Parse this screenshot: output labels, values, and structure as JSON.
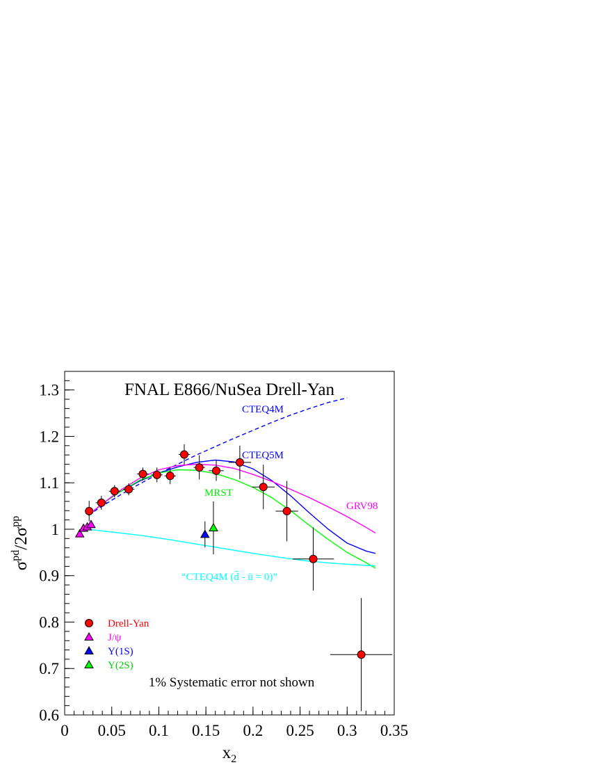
{
  "chart_data": {
    "type": "scatter",
    "title": "FNAL E866/NuSea Drell-Yan",
    "xlabel": "x",
    "xlabel_sub": "2",
    "ylabel": {
      "sigma1": "σ",
      "sup1": "pd",
      "mid": "/2σ",
      "sup2": "pp"
    },
    "xlim": [
      0,
      0.35
    ],
    "ylim": [
      0.6,
      1.34
    ],
    "xticks": [
      0,
      0.05,
      0.1,
      0.15,
      0.2,
      0.25,
      0.3,
      0.35
    ],
    "xtick_labels": [
      "0",
      "0.05",
      "0.1",
      "0.15",
      "0.2",
      "0.25",
      "0.3",
      "0.35"
    ],
    "yticks": [
      0.6,
      0.7,
      0.8,
      0.9,
      1.0,
      1.1,
      1.2,
      1.3
    ],
    "ytick_labels": [
      "0.6",
      "0.7",
      "0.8",
      "0.9",
      "1",
      "1.1",
      "1.2",
      "1.3"
    ],
    "grid": false,
    "note": "1% Systematic error not shown",
    "series": [
      {
        "name": "Drell-Yan",
        "marker": "circle",
        "color": "#ff0000",
        "points": [
          {
            "x": 0.026,
            "y": 1.039,
            "xerr": 0.004,
            "yerr": 0.022
          },
          {
            "x": 0.039,
            "y": 1.057,
            "xerr": 0.006,
            "yerr": 0.015
          },
          {
            "x": 0.053,
            "y": 1.082,
            "xerr": 0.006,
            "yerr": 0.013
          },
          {
            "x": 0.068,
            "y": 1.086,
            "xerr": 0.006,
            "yerr": 0.013
          },
          {
            "x": 0.083,
            "y": 1.119,
            "xerr": 0.006,
            "yerr": 0.014
          },
          {
            "x": 0.098,
            "y": 1.117,
            "xerr": 0.006,
            "yerr": 0.016
          },
          {
            "x": 0.112,
            "y": 1.115,
            "xerr": 0.006,
            "yerr": 0.018
          },
          {
            "x": 0.127,
            "y": 1.161,
            "xerr": 0.006,
            "yerr": 0.022
          },
          {
            "x": 0.143,
            "y": 1.133,
            "xerr": 0.006,
            "yerr": 0.026
          },
          {
            "x": 0.161,
            "y": 1.126,
            "xerr": 0.008,
            "yerr": 0.022
          },
          {
            "x": 0.186,
            "y": 1.144,
            "xerr": 0.012,
            "yerr": 0.036
          },
          {
            "x": 0.211,
            "y": 1.091,
            "xerr": 0.012,
            "yerr": 0.048
          },
          {
            "x": 0.236,
            "y": 1.039,
            "xerr": 0.012,
            "yerr": 0.065
          },
          {
            "x": 0.264,
            "y": 0.936,
            "xerr": 0.022,
            "yerr": 0.068
          },
          {
            "x": 0.315,
            "y": 0.73,
            "xerr": 0.033,
            "yerr": 0.122
          }
        ]
      },
      {
        "name": "J/ψ",
        "marker": "triangle",
        "color": "#ff00ff",
        "points": [
          {
            "x": 0.016,
            "y": 0.99,
            "xerr": 0,
            "yerr": 0
          },
          {
            "x": 0.02,
            "y": 1.002,
            "xerr": 0,
            "yerr": 0
          },
          {
            "x": 0.024,
            "y": 1.005,
            "xerr": 0,
            "yerr": 0
          },
          {
            "x": 0.028,
            "y": 1.01,
            "xerr": 0,
            "yerr": 0
          }
        ]
      },
      {
        "name": "Υ(1S)",
        "marker": "triangle",
        "color": "#0000ff",
        "points": [
          {
            "x": 0.149,
            "y": 0.989,
            "xerr": 0,
            "yerr": 0.028
          }
        ]
      },
      {
        "name": "Υ(2S)",
        "marker": "triangle",
        "color": "#00ff00",
        "points": [
          {
            "x": 0.158,
            "y": 1.003,
            "xerr": 0,
            "yerr": 0.057
          }
        ]
      }
    ],
    "curves": [
      {
        "name": "CTEQ4M",
        "color": "#0000ff",
        "dashed": true,
        "points": [
          [
            0.025,
            1.03
          ],
          [
            0.04,
            1.05
          ],
          [
            0.06,
            1.075
          ],
          [
            0.08,
            1.098
          ],
          [
            0.1,
            1.12
          ],
          [
            0.12,
            1.14
          ],
          [
            0.14,
            1.16
          ],
          [
            0.16,
            1.178
          ],
          [
            0.18,
            1.196
          ],
          [
            0.2,
            1.213
          ],
          [
            0.22,
            1.23
          ],
          [
            0.24,
            1.246
          ],
          [
            0.26,
            1.26
          ],
          [
            0.28,
            1.273
          ],
          [
            0.3,
            1.283
          ]
        ]
      },
      {
        "name": "CTEQ5M",
        "color": "#0000ff",
        "dashed": false,
        "points": [
          [
            0.025,
            1.03
          ],
          [
            0.04,
            1.055
          ],
          [
            0.06,
            1.082
          ],
          [
            0.08,
            1.104
          ],
          [
            0.1,
            1.121
          ],
          [
            0.12,
            1.134
          ],
          [
            0.14,
            1.144
          ],
          [
            0.16,
            1.149
          ],
          [
            0.18,
            1.145
          ],
          [
            0.2,
            1.13
          ],
          [
            0.22,
            1.105
          ],
          [
            0.24,
            1.072
          ],
          [
            0.26,
            1.035
          ],
          [
            0.28,
            1.0
          ],
          [
            0.3,
            0.97
          ],
          [
            0.32,
            0.953
          ],
          [
            0.33,
            0.948
          ]
        ]
      },
      {
        "name": "MRST",
        "color": "#00ff00",
        "dashed": false,
        "points": [
          [
            0.025,
            1.03
          ],
          [
            0.04,
            1.055
          ],
          [
            0.06,
            1.082
          ],
          [
            0.08,
            1.106
          ],
          [
            0.1,
            1.121
          ],
          [
            0.12,
            1.128
          ],
          [
            0.14,
            1.127
          ],
          [
            0.16,
            1.12
          ],
          [
            0.18,
            1.107
          ],
          [
            0.2,
            1.09
          ],
          [
            0.22,
            1.068
          ],
          [
            0.24,
            1.04
          ],
          [
            0.26,
            1.008
          ],
          [
            0.28,
            0.978
          ],
          [
            0.3,
            0.95
          ],
          [
            0.32,
            0.928
          ],
          [
            0.33,
            0.916
          ]
        ]
      },
      {
        "name": "GRV98",
        "color": "#ff00ff",
        "dashed": false,
        "points": [
          [
            0.025,
            1.03
          ],
          [
            0.04,
            1.055
          ],
          [
            0.06,
            1.085
          ],
          [
            0.08,
            1.11
          ],
          [
            0.1,
            1.128
          ],
          [
            0.12,
            1.137
          ],
          [
            0.14,
            1.14
          ],
          [
            0.16,
            1.138
          ],
          [
            0.18,
            1.131
          ],
          [
            0.2,
            1.118
          ],
          [
            0.22,
            1.103
          ],
          [
            0.24,
            1.086
          ],
          [
            0.26,
            1.068
          ],
          [
            0.28,
            1.048
          ],
          [
            0.3,
            1.027
          ],
          [
            0.32,
            1.004
          ],
          [
            0.33,
            0.992
          ]
        ]
      },
      {
        "name": "“CTEQ4M (d̄ - ū = 0)”",
        "color": "#00ffff",
        "dashed": false,
        "points": [
          [
            0.025,
            1.0
          ],
          [
            0.05,
            0.994
          ],
          [
            0.08,
            0.987
          ],
          [
            0.11,
            0.978
          ],
          [
            0.14,
            0.968
          ],
          [
            0.17,
            0.958
          ],
          [
            0.2,
            0.948
          ],
          [
            0.23,
            0.939
          ],
          [
            0.26,
            0.931
          ],
          [
            0.29,
            0.926
          ],
          [
            0.32,
            0.922
          ],
          [
            0.33,
            0.921
          ]
        ]
      }
    ],
    "curve_labels": [
      {
        "text": "CTEQ4M",
        "color": "#0000ff"
      },
      {
        "text": "CTEQ5M",
        "color": "#0000ff"
      },
      {
        "text": "MRST",
        "color": "#00ee00"
      },
      {
        "text": "GRV98",
        "color": "#ff00ff"
      },
      {
        "text": "“CTEQ4M (d̄ - ū = 0)”",
        "color": "#00ffff"
      }
    ],
    "legend": {
      "position": "bottom-left",
      "entries": [
        {
          "label": "Drell-Yan",
          "marker": "circle",
          "color": "#ff0000"
        },
        {
          "label": "J/ψ",
          "marker": "triangle",
          "color": "#ff00ff"
        },
        {
          "label": "Υ(1S)",
          "marker": "triangle",
          "color": "#0000ff"
        },
        {
          "label": "Υ(2S)",
          "marker": "triangle",
          "color": "#00ff00"
        }
      ]
    }
  }
}
